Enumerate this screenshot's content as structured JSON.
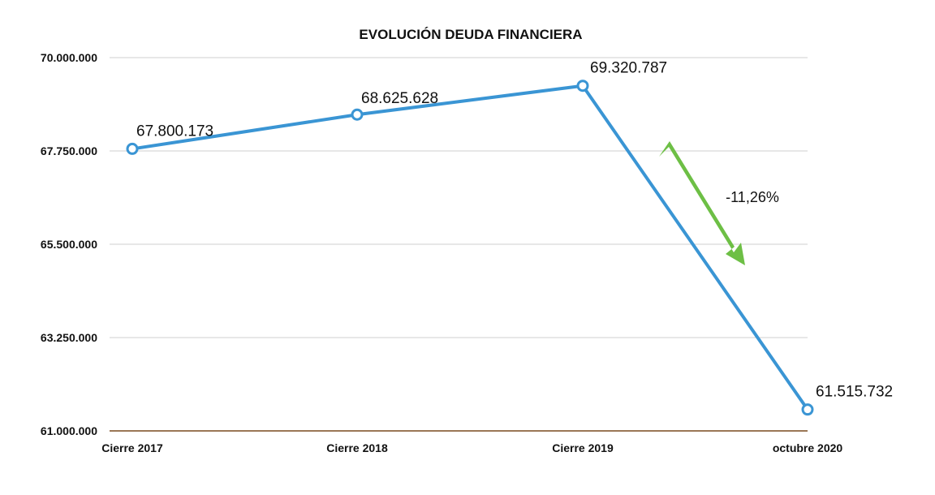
{
  "chart_data": {
    "type": "line",
    "title": "EVOLUCIÓN DEUDA FINANCIERA",
    "xlabel": "",
    "ylabel": "",
    "categories": [
      "Cierre 2017",
      "Cierre 2018",
      "Cierre 2019",
      "octubre 2020"
    ],
    "series": [
      {
        "values": [
          67800173,
          68625628,
          69320787,
          61515732
        ],
        "data_labels": [
          "67.800.173",
          "68.625.628",
          "69.320.787",
          "61.515.732"
        ],
        "color": "#3a95d4"
      }
    ],
    "ylim": [
      61000000,
      70000000
    ],
    "yticks": [
      61000000,
      63250000,
      65500000,
      67750000,
      70000000
    ],
    "ytick_labels": [
      "61.000.000",
      "63.250.000",
      "65.500.000",
      "67.750.000",
      "70.000.000"
    ],
    "grid": true,
    "legend": "none",
    "annotation": {
      "text": "-11,26%",
      "arrow_color": "#6dbf45"
    },
    "colors": {
      "line": "#3a95d4",
      "grid": "#cfcfcf",
      "baseline": "#7a4a1e",
      "arrow": "#6dbf45"
    }
  }
}
